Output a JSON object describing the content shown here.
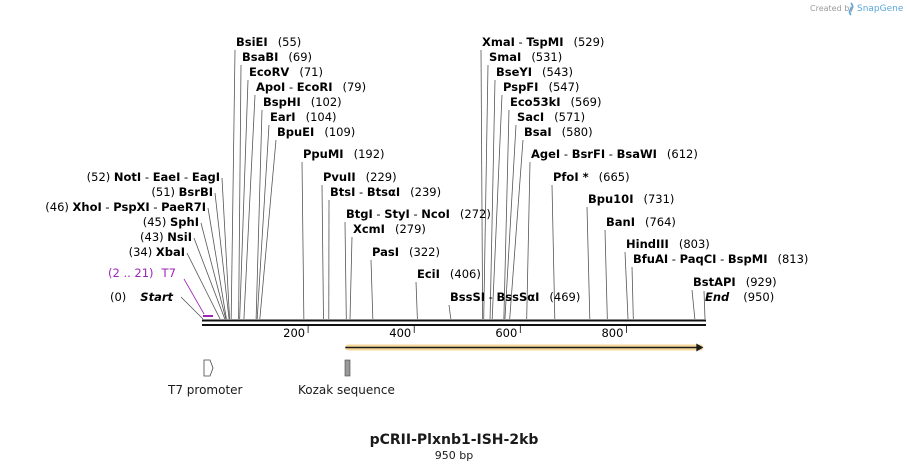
{
  "title": "pCRII-Plxnb1-ISH-2kb",
  "length_label": "950 bp",
  "credit": {
    "prefix": "Created by",
    "brand": "SnapGene"
  },
  "scale": {
    "start": 0,
    "end": 950,
    "ticks": [
      200,
      400,
      600,
      800
    ]
  },
  "colors": {
    "purple": "#9b26b6",
    "orf": "#e8a33a",
    "backbone": "#111111"
  },
  "start_marker": {
    "pos": "(0)",
    "name": "Start"
  },
  "end_marker": {
    "name": "End",
    "pos": "(950)"
  },
  "primer": {
    "range": "(2 .. 21)",
    "name": "T7"
  },
  "left_sites": [
    {
      "pos": "(52)",
      "names": [
        "NotI",
        "EaeI",
        "EagI"
      ],
      "bp": 52
    },
    {
      "pos": "(51)",
      "names": [
        "BsrBI"
      ],
      "bp": 51
    },
    {
      "pos": "(46)",
      "names": [
        "XhoI",
        "PspXI",
        "PaeR7I"
      ],
      "bp": 46
    },
    {
      "pos": "(45)",
      "names": [
        "SphI"
      ],
      "bp": 45
    },
    {
      "pos": "(43)",
      "names": [
        "NsiI"
      ],
      "bp": 43
    },
    {
      "pos": "(34)",
      "names": [
        "XbaI"
      ],
      "bp": 34
    }
  ],
  "right_sites": [
    {
      "names": [
        "BsiEI"
      ],
      "pos": "(55)",
      "bp": 55
    },
    {
      "names": [
        "BsaBI"
      ],
      "pos": "(69)",
      "bp": 69
    },
    {
      "names": [
        "EcoRV"
      ],
      "pos": "(71)",
      "bp": 71
    },
    {
      "names": [
        "ApoI",
        "EcoRI"
      ],
      "pos": "(79)",
      "bp": 79
    },
    {
      "names": [
        "BspHI"
      ],
      "pos": "(102)",
      "bp": 102
    },
    {
      "names": [
        "EarI"
      ],
      "pos": "(104)",
      "bp": 104
    },
    {
      "names": [
        "BpuEI"
      ],
      "pos": "(109)",
      "bp": 109
    },
    {
      "names": [
        "PpuMI"
      ],
      "pos": "(192)",
      "bp": 192
    },
    {
      "names": [
        "PvuII"
      ],
      "pos": "(229)",
      "bp": 229
    },
    {
      "names": [
        "BtsI",
        "BtsαI"
      ],
      "pos": "(239)",
      "bp": 239
    },
    {
      "names": [
        "BtgI",
        "StyI",
        "NcoI"
      ],
      "pos": "(272)",
      "bp": 272
    },
    {
      "names": [
        "XcmI"
      ],
      "pos": "(279)",
      "bp": 279
    },
    {
      "names": [
        "PasI"
      ],
      "pos": "(322)",
      "bp": 322
    },
    {
      "names": [
        "EciI"
      ],
      "pos": "(406)",
      "bp": 406
    },
    {
      "names": [
        "BssSI",
        "BssSαI"
      ],
      "pos": "(469)",
      "bp": 469
    },
    {
      "names": [
        "XmaI",
        "TspMI"
      ],
      "pos": "(529)",
      "bp": 529
    },
    {
      "names": [
        "SmaI"
      ],
      "pos": "(531)",
      "bp": 531
    },
    {
      "names": [
        "BseYI"
      ],
      "pos": "(543)",
      "bp": 543
    },
    {
      "names": [
        "PspFI"
      ],
      "pos": "(547)",
      "bp": 547
    },
    {
      "names": [
        "Eco53kI"
      ],
      "pos": "(569)",
      "bp": 569
    },
    {
      "names": [
        "SacI"
      ],
      "pos": "(571)",
      "bp": 571
    },
    {
      "names": [
        "BsaI"
      ],
      "pos": "(580)",
      "bp": 580
    },
    {
      "names": [
        "AgeI",
        "BsrFI",
        "BsaWI"
      ],
      "pos": "(612)",
      "bp": 612
    },
    {
      "names": [
        "PfoI *"
      ],
      "pos": "(665)",
      "bp": 665
    },
    {
      "names": [
        "Bpu10I"
      ],
      "pos": "(731)",
      "bp": 731
    },
    {
      "names": [
        "BanI"
      ],
      "pos": "(764)",
      "bp": 764
    },
    {
      "names": [
        "HindIII"
      ],
      "pos": "(803)",
      "bp": 803
    },
    {
      "names": [
        "BfuAI",
        "PaqCI",
        "BspMI"
      ],
      "pos": "(813)",
      "bp": 813
    },
    {
      "names": [
        "BstAPI"
      ],
      "pos": "(929)",
      "bp": 929
    }
  ],
  "features": [
    {
      "name": "T7 promoter",
      "kind": "promoter",
      "start": 2,
      "end": 20
    },
    {
      "name": "Kozak sequence",
      "kind": "kozak",
      "start": 270,
      "end": 280
    }
  ],
  "orf": {
    "start": 270,
    "end": 945,
    "direction": "forward"
  }
}
